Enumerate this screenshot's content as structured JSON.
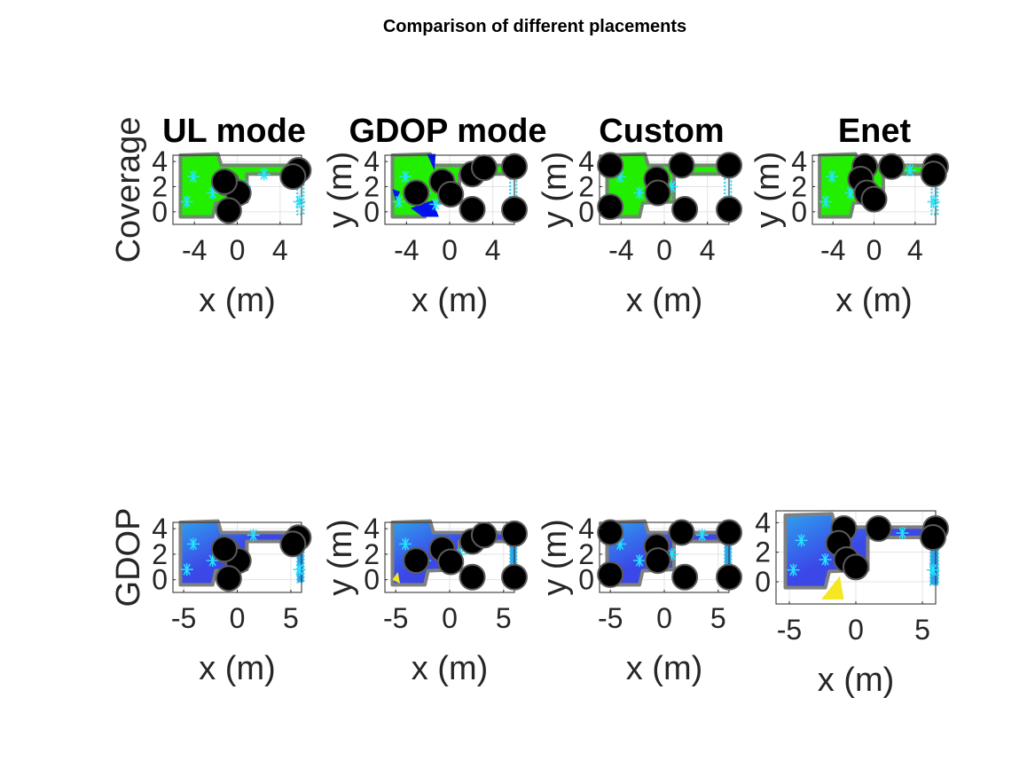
{
  "figure": {
    "suptitle": "Comparison of different placements"
  },
  "colors": {
    "coverage_fill": "#22ee00",
    "coverage_edge": "#00cc00",
    "blocked": "#0011ee",
    "room_edge": "#808080",
    "anchor": "#000000",
    "anchor_edge": "#5a5a5a",
    "target": "#22e5ff",
    "corridor": "#33ccdd",
    "gdop_low": "#3b49e8",
    "gdop_mid": "#2ea0ee",
    "gdop_high": "#f5e823"
  },
  "chart_data": [
    {
      "panel": "coverage-ul-mode",
      "type": "scatter",
      "title": "UL mode",
      "ylabel": "Coverage",
      "xlabel": "x (m)",
      "xticks": [
        "-4",
        "0",
        "4"
      ],
      "yticks": [
        "4",
        "2",
        "0"
      ],
      "xlim": [
        -6,
        6
      ],
      "ylim": [
        -1,
        4.5
      ],
      "grid": true,
      "map": "coverage",
      "anchors": [
        [
          -1.0,
          2.3
        ],
        [
          0.1,
          1.5
        ],
        [
          -0.8,
          0.1
        ],
        [
          -1.2,
          2.4
        ],
        [
          5.7,
          3.3
        ],
        [
          5.2,
          2.8
        ]
      ],
      "targets": [
        [
          -4.1,
          2.8
        ],
        [
          -2.3,
          1.5
        ],
        [
          -4.7,
          0.8
        ],
        [
          0.7,
          2.0
        ],
        [
          5.8,
          0.8
        ],
        [
          2.5,
          3.0
        ]
      ]
    },
    {
      "panel": "coverage-gdop-mode",
      "type": "scatter",
      "title": "GDOP mode",
      "ylabel": "y (m)",
      "xlabel": "x (m)",
      "xticks": [
        "-4",
        "0",
        "4"
      ],
      "yticks": [
        "4",
        "2",
        "0"
      ],
      "xlim": [
        -6,
        6
      ],
      "ylim": [
        -1,
        4.5
      ],
      "grid": true,
      "map": "coverage_blocked",
      "anchors": [
        [
          -3.1,
          1.5
        ],
        [
          -0.7,
          2.4
        ],
        [
          0.1,
          1.4
        ],
        [
          2.1,
          3.0
        ],
        [
          3.2,
          3.5
        ],
        [
          6.0,
          3.6
        ],
        [
          2.1,
          0.2
        ],
        [
          6.0,
          0.2
        ]
      ],
      "targets": [
        [
          -4.1,
          2.8
        ],
        [
          -2.3,
          1.5
        ],
        [
          -4.7,
          0.8
        ],
        [
          -1.3,
          0.6
        ],
        [
          5.8,
          0.8
        ]
      ]
    },
    {
      "panel": "coverage-custom",
      "type": "scatter",
      "title": "Custom",
      "ylabel": "y (m)",
      "xlabel": "x (m)",
      "xticks": [
        "-4",
        "0",
        "4"
      ],
      "yticks": [
        "4",
        "2",
        "0"
      ],
      "xlim": [
        -6,
        6
      ],
      "ylim": [
        -1,
        4.5
      ],
      "grid": true,
      "map": "coverage",
      "anchors": [
        [
          -5.0,
          3.7
        ],
        [
          -5.0,
          0.4
        ],
        [
          -0.7,
          2.6
        ],
        [
          -0.6,
          1.5
        ],
        [
          1.6,
          3.7
        ],
        [
          6.0,
          3.7
        ],
        [
          1.9,
          0.2
        ],
        [
          6.0,
          0.2
        ]
      ],
      "targets": [
        [
          -4.1,
          2.8
        ],
        [
          -2.3,
          1.5
        ],
        [
          0.7,
          2.0
        ],
        [
          5.8,
          0.8
        ]
      ]
    },
    {
      "panel": "coverage-enet",
      "type": "scatter",
      "title": "Enet",
      "ylabel": "y (m)",
      "xlabel": "x (m)",
      "xticks": [
        "-4",
        "0",
        "4"
      ],
      "yticks": [
        "4",
        "2",
        "0"
      ],
      "xlim": [
        -6,
        6
      ],
      "ylim": [
        -1,
        4.5
      ],
      "grid": true,
      "map": "coverage",
      "anchors": [
        [
          -0.9,
          3.6
        ],
        [
          -1.3,
          2.6
        ],
        [
          -0.7,
          1.5
        ],
        [
          0.0,
          1.0
        ],
        [
          1.7,
          3.6
        ],
        [
          6.0,
          3.6
        ],
        [
          5.8,
          3.0
        ]
      ],
      "targets": [
        [
          -4.1,
          2.8
        ],
        [
          -2.3,
          1.5
        ],
        [
          -4.7,
          0.8
        ],
        [
          3.5,
          3.3
        ],
        [
          5.8,
          0.8
        ]
      ]
    },
    {
      "panel": "gdop-ul-mode",
      "type": "heatmap",
      "title": "",
      "ylabel": "GDOP",
      "xlabel": "x (m)",
      "xticks": [
        "-5",
        "0",
        "5"
      ],
      "yticks": [
        "4",
        "2",
        "0"
      ],
      "xlim": [
        -6,
        6
      ],
      "ylim": [
        -1,
        4.5
      ],
      "grid": true,
      "map": "gdop",
      "anchors": [
        [
          -1.0,
          2.3
        ],
        [
          0.1,
          1.5
        ],
        [
          -0.8,
          0.1
        ],
        [
          -1.2,
          2.4
        ],
        [
          5.7,
          3.3
        ],
        [
          5.2,
          2.8
        ]
      ],
      "targets": [
        [
          -4.1,
          2.8
        ],
        [
          -2.3,
          1.5
        ],
        [
          -4.7,
          0.8
        ],
        [
          1.5,
          3.5
        ],
        [
          5.8,
          0.8
        ]
      ]
    },
    {
      "panel": "gdop-gdop-mode",
      "type": "heatmap",
      "title": "",
      "ylabel": "y (m)",
      "xlabel": "x (m)",
      "xticks": [
        "-5",
        "0",
        "5"
      ],
      "yticks": [
        "4",
        "2",
        "0"
      ],
      "xlim": [
        -6,
        6
      ],
      "ylim": [
        -1,
        4.5
      ],
      "grid": true,
      "map": "gdop",
      "anchors": [
        [
          -3.1,
          1.5
        ],
        [
          -0.7,
          2.4
        ],
        [
          0.1,
          1.4
        ],
        [
          2.1,
          3.0
        ],
        [
          3.2,
          3.5
        ],
        [
          6.0,
          3.6
        ],
        [
          2.1,
          0.2
        ],
        [
          6.0,
          0.2
        ]
      ],
      "targets": [
        [
          -4.1,
          2.8
        ],
        [
          -2.3,
          1.5
        ],
        [
          1.0,
          2.0
        ],
        [
          5.8,
          0.8
        ]
      ]
    },
    {
      "panel": "gdop-custom",
      "type": "heatmap",
      "title": "",
      "ylabel": "y (m)",
      "xlabel": "x (m)",
      "xticks": [
        "-5",
        "0",
        "5"
      ],
      "yticks": [
        "4",
        "2",
        "0"
      ],
      "xlim": [
        -6,
        6
      ],
      "ylim": [
        -1,
        4.5
      ],
      "grid": true,
      "map": "gdop",
      "anchors": [
        [
          -5.0,
          3.7
        ],
        [
          -5.0,
          0.4
        ],
        [
          -0.7,
          2.6
        ],
        [
          -0.6,
          1.5
        ],
        [
          1.6,
          3.7
        ],
        [
          6.0,
          3.7
        ],
        [
          1.9,
          0.2
        ],
        [
          6.0,
          0.2
        ]
      ],
      "targets": [
        [
          -4.1,
          2.8
        ],
        [
          -2.3,
          1.5
        ],
        [
          0.7,
          2.0
        ],
        [
          3.5,
          3.5
        ],
        [
          5.8,
          0.8
        ]
      ]
    },
    {
      "panel": "gdop-enet",
      "type": "heatmap",
      "title": "",
      "ylabel": "",
      "xlabel": "x (m)",
      "xticks": [
        "-5",
        "0",
        "5"
      ],
      "yticks": [
        "4",
        "2",
        "0"
      ],
      "xlim": [
        -6,
        6
      ],
      "ylim": [
        -1.5,
        4.8
      ],
      "grid": true,
      "map": "gdop_enet",
      "anchors": [
        [
          -0.9,
          3.6
        ],
        [
          -1.3,
          2.6
        ],
        [
          -0.7,
          1.5
        ],
        [
          0.0,
          1.0
        ],
        [
          1.7,
          3.6
        ],
        [
          6.0,
          3.6
        ],
        [
          5.8,
          3.0
        ]
      ],
      "targets": [
        [
          -4.1,
          2.8
        ],
        [
          -2.3,
          1.5
        ],
        [
          -4.7,
          0.8
        ],
        [
          3.5,
          3.3
        ],
        [
          5.8,
          0.8
        ]
      ]
    }
  ]
}
